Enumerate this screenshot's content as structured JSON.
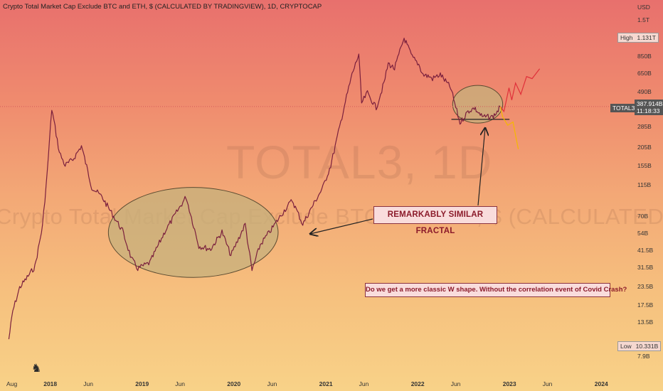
{
  "header": {
    "title": "Crypto Total Market Cap Exclude BTC and ETH, $ (CALCULATED BY TRADINGVIEW), 1D, CRYPTOCAP"
  },
  "watermark": {
    "big": "TOTAL3, 1D",
    "sub": "Crypto Total Market Cap Exclude BTC and ETH, $ (CALCULATED BY TRADINGVIEW)"
  },
  "axis": {
    "currency": "USD"
  },
  "y_ticks": [
    "1.5T",
    "850B",
    "650B",
    "490B",
    "285B",
    "205B",
    "155B",
    "115B",
    "70B",
    "54B",
    "41.5B",
    "31.5B",
    "23.5B",
    "17.5B",
    "13.5B",
    "7.9B"
  ],
  "x_ticks": [
    {
      "label": "Aug",
      "bold": false
    },
    {
      "label": "2018",
      "bold": true
    },
    {
      "label": "Jun",
      "bold": false
    },
    {
      "label": "2019",
      "bold": true
    },
    {
      "label": "Jun",
      "bold": false
    },
    {
      "label": "2020",
      "bold": true
    },
    {
      "label": "Jun",
      "bold": false
    },
    {
      "label": "2021",
      "bold": true
    },
    {
      "label": "Jun",
      "bold": false
    },
    {
      "label": "2022",
      "bold": true
    },
    {
      "label": "Jun",
      "bold": false
    },
    {
      "label": "2023",
      "bold": true
    },
    {
      "label": "Jun",
      "bold": false
    },
    {
      "label": "2024",
      "bold": true
    }
  ],
  "labels": {
    "high": {
      "name": "High",
      "value": "1.131T"
    },
    "low": {
      "name": "Low",
      "value": "10.331B"
    },
    "last": {
      "name": "TOTAL3",
      "value": "387.914B",
      "countdown": "11:18:33"
    }
  },
  "annotations": {
    "main": "REMARKABLY SIMILAR  FRACTAL",
    "question": "Do we get a more classic W shape. Without the correlation event of Covid Crash?"
  },
  "colors": {
    "candles": "#7a1f3d",
    "ellipse_fill": "#c5b07c",
    "ellipse_stroke": "#5a4a30",
    "projection_up": "#e0303a",
    "projection_down": "#f5b800",
    "annotation_text": "#8b1a2a"
  },
  "chart_data": {
    "type": "line",
    "series": [
      {
        "x": [
          "2017-07-20",
          "2017-08-05",
          "2017-09-01",
          "2017-10-01",
          "2017-11-01",
          "2017-12-01",
          "2017-12-20",
          "2018-01-07",
          "2018-02-06",
          "2018-03-01",
          "2018-04-01",
          "2018-05-05",
          "2018-06-15",
          "2018-07-25",
          "2018-09-10",
          "2018-10-15",
          "2018-11-20",
          "2018-12-15",
          "2019-02-01",
          "2019-04-01",
          "2019-06-25",
          "2019-08-15",
          "2019-10-01",
          "2019-11-15",
          "2019-12-20",
          "2020-02-15",
          "2020-03-13",
          "2020-04-15",
          "2020-06-01",
          "2020-07-15",
          "2020-08-20",
          "2020-10-01",
          "2020-11-15",
          "2020-12-20",
          "2021-01-20",
          "2021-02-20",
          "2021-03-15",
          "2021-04-15",
          "2021-05-12",
          "2021-05-23",
          "2021-06-15",
          "2021-07-20",
          "2021-08-20",
          "2021-09-06",
          "2021-10-01",
          "2021-11-08",
          "2021-12-10",
          "2022-01-05",
          "2022-01-22",
          "2022-02-15",
          "2022-03-01",
          "2022-04-01",
          "2022-05-12",
          "2022-06-18",
          "2022-07-20",
          "2022-08-14",
          "2022-09-15",
          "2022-10-25",
          "2022-11-09",
          "2022-11-25"
        ],
        "values": [
          10.3,
          16,
          23,
          27,
          32,
          60,
          140,
          375,
          190,
          155,
          170,
          210,
          110,
          95,
          70,
          56,
          36,
          31,
          34,
          55,
          95,
          44,
          42,
          55,
          38,
          62,
          30,
          45,
          58,
          75,
          90,
          62,
          86,
          110,
          155,
          260,
          390,
          640,
          880,
          410,
          480,
          380,
          560,
          760,
          700,
          1131,
          840,
          750,
          640,
          620,
          600,
          640,
          520,
          300,
          360,
          380,
          330,
          330,
          350,
          388
        ]
      }
    ],
    "title": "Crypto Total Market Cap Exclude BTC and ETH, $ (CALCULATED BY TRADINGVIEW), 1D, CRYPTOCAP",
    "ylabel": "USD",
    "yscale": "log",
    "ylim": [
      7,
      1500
    ],
    "xlim": [
      "2017-06-15",
      "2024-05-01"
    ],
    "projections": [
      {
        "color": "red",
        "x": [
          "2022-11-25",
          "2022-12-10",
          "2022-12-30",
          "2023-01-10",
          "2023-01-25",
          "2023-02-15",
          "2023-03-10",
          "2023-04-01",
          "2023-05-01"
        ],
        "values": [
          388,
          360,
          520,
          430,
          560,
          470,
          620,
          600,
          700
        ]
      },
      {
        "color": "yellow",
        "x": [
          "2022-11-25",
          "2022-12-05",
          "2022-12-25",
          "2023-01-15",
          "2023-02-05"
        ],
        "values": [
          388,
          330,
          290,
          305,
          200
        ]
      }
    ],
    "support_level": 318,
    "grid": false,
    "legend": "none"
  }
}
